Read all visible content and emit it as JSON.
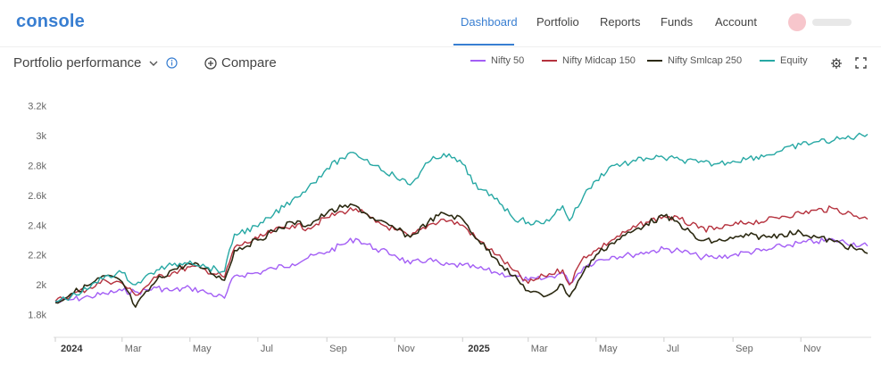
{
  "header": {
    "logo": "console",
    "nav": [
      {
        "label": "Dashboard",
        "active": true
      },
      {
        "label": "Portfolio",
        "active": false
      },
      {
        "label": "Reports",
        "active": false
      },
      {
        "label": "Funds",
        "active": false
      },
      {
        "label": "Account",
        "active": false
      }
    ],
    "accent_color": "#387ed1"
  },
  "toolbar": {
    "title": "Portfolio performance",
    "compare_label": "Compare",
    "icons": [
      "chevron-down-icon",
      "info-icon",
      "add-circle-icon",
      "gear-icon",
      "expand-icon"
    ]
  },
  "chart_data": {
    "type": "line",
    "legend_position": "top-right",
    "grid": false,
    "ylim": [
      1700,
      3300
    ],
    "yticks": [
      "1.8k",
      "2k",
      "2.2k",
      "2.4k",
      "2.6k",
      "2.8k",
      "3k",
      "3.2k"
    ],
    "ytick_values": [
      1800,
      2000,
      2200,
      2400,
      2600,
      2800,
      3000,
      3200
    ],
    "xlim": [
      "2024-01-01",
      "2025-12-31"
    ],
    "xticks": [
      {
        "label": "2024",
        "date": "2024-01-01",
        "bold": true
      },
      {
        "label": "Mar",
        "date": "2024-03-01"
      },
      {
        "label": "May",
        "date": "2024-05-01"
      },
      {
        "label": "Jul",
        "date": "2024-07-01"
      },
      {
        "label": "Sep",
        "date": "2024-09-01"
      },
      {
        "label": "Nov",
        "date": "2024-11-01"
      },
      {
        "label": "2025",
        "date": "2025-01-01",
        "bold": true
      },
      {
        "label": "Mar",
        "date": "2025-03-01"
      },
      {
        "label": "May",
        "date": "2025-05-01"
      },
      {
        "label": "Jul",
        "date": "2025-07-01"
      },
      {
        "label": "Sep",
        "date": "2025-09-01"
      },
      {
        "label": "Nov",
        "date": "2025-11-01"
      }
    ],
    "series": [
      {
        "name": "Nifty 50",
        "color": "#a35ef5",
        "points": [
          [
            "2024-01-01",
            1880
          ],
          [
            "2024-01-15",
            1900
          ],
          [
            "2024-02-01",
            1920
          ],
          [
            "2024-02-15",
            1940
          ],
          [
            "2024-03-01",
            1960
          ],
          [
            "2024-03-15",
            1950
          ],
          [
            "2024-04-01",
            1980
          ],
          [
            "2024-04-15",
            1960
          ],
          [
            "2024-05-01",
            1980
          ],
          [
            "2024-05-15",
            1950
          ],
          [
            "2024-06-01",
            1910
          ],
          [
            "2024-06-10",
            2060
          ],
          [
            "2024-07-01",
            2080
          ],
          [
            "2024-07-15",
            2110
          ],
          [
            "2024-08-01",
            2140
          ],
          [
            "2024-08-15",
            2180
          ],
          [
            "2024-09-01",
            2220
          ],
          [
            "2024-09-15",
            2270
          ],
          [
            "2024-09-27",
            2310
          ],
          [
            "2024-10-15",
            2240
          ],
          [
            "2024-11-01",
            2200
          ],
          [
            "2024-11-15",
            2140
          ],
          [
            "2024-12-01",
            2170
          ],
          [
            "2024-12-15",
            2130
          ],
          [
            "2025-01-01",
            2130
          ],
          [
            "2025-01-15",
            2110
          ],
          [
            "2025-02-01",
            2080
          ],
          [
            "2025-02-15",
            2060
          ],
          [
            "2025-03-01",
            2030
          ],
          [
            "2025-03-15",
            2040
          ],
          [
            "2025-04-01",
            2080
          ],
          [
            "2025-04-07",
            2010
          ],
          [
            "2025-04-20",
            2120
          ],
          [
            "2025-05-01",
            2160
          ],
          [
            "2025-05-15",
            2190
          ],
          [
            "2025-06-01",
            2200
          ],
          [
            "2025-06-15",
            2220
          ],
          [
            "2025-07-01",
            2240
          ],
          [
            "2025-07-15",
            2230
          ],
          [
            "2025-08-01",
            2190
          ],
          [
            "2025-08-15",
            2180
          ],
          [
            "2025-09-01",
            2200
          ],
          [
            "2025-09-15",
            2220
          ],
          [
            "2025-10-01",
            2230
          ],
          [
            "2025-10-15",
            2260
          ],
          [
            "2025-11-01",
            2280
          ],
          [
            "2025-11-15",
            2290
          ],
          [
            "2025-12-01",
            2300
          ],
          [
            "2025-12-31",
            2260
          ]
        ]
      },
      {
        "name": "Nifty Midcap 150",
        "color": "#b5323e",
        "points": [
          [
            "2024-01-01",
            1890
          ],
          [
            "2024-01-15",
            1930
          ],
          [
            "2024-02-01",
            1980
          ],
          [
            "2024-02-15",
            2030
          ],
          [
            "2024-03-01",
            2010
          ],
          [
            "2024-03-13",
            1930
          ],
          [
            "2024-04-01",
            2050
          ],
          [
            "2024-04-15",
            2080
          ],
          [
            "2024-05-01",
            2120
          ],
          [
            "2024-05-15",
            2100
          ],
          [
            "2024-06-01",
            2050
          ],
          [
            "2024-06-10",
            2250
          ],
          [
            "2024-07-01",
            2310
          ],
          [
            "2024-07-15",
            2360
          ],
          [
            "2024-08-01",
            2400
          ],
          [
            "2024-08-15",
            2380
          ],
          [
            "2024-09-01",
            2450
          ],
          [
            "2024-09-15",
            2490
          ],
          [
            "2024-09-27",
            2510
          ],
          [
            "2024-10-15",
            2420
          ],
          [
            "2024-11-01",
            2370
          ],
          [
            "2024-11-15",
            2320
          ],
          [
            "2024-12-01",
            2400
          ],
          [
            "2024-12-15",
            2440
          ],
          [
            "2025-01-01",
            2400
          ],
          [
            "2025-01-15",
            2300
          ],
          [
            "2025-02-01",
            2200
          ],
          [
            "2025-02-15",
            2100
          ],
          [
            "2025-03-01",
            2010
          ],
          [
            "2025-03-15",
            2060
          ],
          [
            "2025-04-01",
            2100
          ],
          [
            "2025-04-07",
            2000
          ],
          [
            "2025-04-20",
            2190
          ],
          [
            "2025-05-01",
            2230
          ],
          [
            "2025-05-15",
            2300
          ],
          [
            "2025-06-01",
            2370
          ],
          [
            "2025-06-15",
            2420
          ],
          [
            "2025-07-01",
            2460
          ],
          [
            "2025-07-15",
            2440
          ],
          [
            "2025-08-01",
            2380
          ],
          [
            "2025-08-15",
            2370
          ],
          [
            "2025-09-01",
            2400
          ],
          [
            "2025-09-15",
            2420
          ],
          [
            "2025-10-01",
            2430
          ],
          [
            "2025-10-15",
            2460
          ],
          [
            "2025-11-01",
            2480
          ],
          [
            "2025-11-15",
            2500
          ],
          [
            "2025-12-01",
            2510
          ],
          [
            "2025-12-31",
            2440
          ]
        ]
      },
      {
        "name": "Nifty Smlcap 250",
        "color": "#2c2a12",
        "points": [
          [
            "2024-01-01",
            1880
          ],
          [
            "2024-01-15",
            1940
          ],
          [
            "2024-02-01",
            2000
          ],
          [
            "2024-02-15",
            2060
          ],
          [
            "2024-03-01",
            2020
          ],
          [
            "2024-03-13",
            1850
          ],
          [
            "2024-04-01",
            2030
          ],
          [
            "2024-04-15",
            2100
          ],
          [
            "2024-05-01",
            2140
          ],
          [
            "2024-05-15",
            2110
          ],
          [
            "2024-06-01",
            2030
          ],
          [
            "2024-06-10",
            2230
          ],
          [
            "2024-07-01",
            2300
          ],
          [
            "2024-07-15",
            2360
          ],
          [
            "2024-08-01",
            2420
          ],
          [
            "2024-08-15",
            2400
          ],
          [
            "2024-09-01",
            2480
          ],
          [
            "2024-09-15",
            2520
          ],
          [
            "2024-09-27",
            2530
          ],
          [
            "2024-10-15",
            2430
          ],
          [
            "2024-11-01",
            2380
          ],
          [
            "2024-11-15",
            2320
          ],
          [
            "2024-12-01",
            2420
          ],
          [
            "2024-12-15",
            2480
          ],
          [
            "2025-01-01",
            2440
          ],
          [
            "2025-01-15",
            2300
          ],
          [
            "2025-02-01",
            2170
          ],
          [
            "2025-02-15",
            2060
          ],
          [
            "2025-03-01",
            1960
          ],
          [
            "2025-03-15",
            1920
          ],
          [
            "2025-04-01",
            2000
          ],
          [
            "2025-04-07",
            1920
          ],
          [
            "2025-04-20",
            2090
          ],
          [
            "2025-05-01",
            2200
          ],
          [
            "2025-05-15",
            2280
          ],
          [
            "2025-06-01",
            2350
          ],
          [
            "2025-06-15",
            2410
          ],
          [
            "2025-07-01",
            2460
          ],
          [
            "2025-07-15",
            2410
          ],
          [
            "2025-08-01",
            2300
          ],
          [
            "2025-08-15",
            2290
          ],
          [
            "2025-09-01",
            2310
          ],
          [
            "2025-09-15",
            2330
          ],
          [
            "2025-10-01",
            2320
          ],
          [
            "2025-10-15",
            2340
          ],
          [
            "2025-11-01",
            2350
          ],
          [
            "2025-11-15",
            2320
          ],
          [
            "2025-12-01",
            2290
          ],
          [
            "2025-12-31",
            2210
          ]
        ]
      },
      {
        "name": "Equity",
        "color": "#27a8a4",
        "points": [
          [
            "2024-01-01",
            1890
          ],
          [
            "2024-01-15",
            1920
          ],
          [
            "2024-02-01",
            1980
          ],
          [
            "2024-02-15",
            2060
          ],
          [
            "2024-03-01",
            2080
          ],
          [
            "2024-03-13",
            2000
          ],
          [
            "2024-04-01",
            2100
          ],
          [
            "2024-04-15",
            2130
          ],
          [
            "2024-05-01",
            2160
          ],
          [
            "2024-05-15",
            2120
          ],
          [
            "2024-06-01",
            2090
          ],
          [
            "2024-06-10",
            2340
          ],
          [
            "2024-07-01",
            2390
          ],
          [
            "2024-07-15",
            2470
          ],
          [
            "2024-08-01",
            2570
          ],
          [
            "2024-08-15",
            2650
          ],
          [
            "2024-09-01",
            2780
          ],
          [
            "2024-09-15",
            2850
          ],
          [
            "2024-09-27",
            2880
          ],
          [
            "2024-10-15",
            2800
          ],
          [
            "2024-11-01",
            2730
          ],
          [
            "2024-11-15",
            2670
          ],
          [
            "2024-12-01",
            2820
          ],
          [
            "2024-12-15",
            2880
          ],
          [
            "2025-01-01",
            2810
          ],
          [
            "2025-01-15",
            2640
          ],
          [
            "2025-02-01",
            2580
          ],
          [
            "2025-02-15",
            2450
          ],
          [
            "2025-03-01",
            2420
          ],
          [
            "2025-03-15",
            2410
          ],
          [
            "2025-04-01",
            2530
          ],
          [
            "2025-04-07",
            2430
          ],
          [
            "2025-04-20",
            2600
          ],
          [
            "2025-05-01",
            2700
          ],
          [
            "2025-05-15",
            2800
          ],
          [
            "2025-06-01",
            2820
          ],
          [
            "2025-06-15",
            2850
          ],
          [
            "2025-07-01",
            2850
          ],
          [
            "2025-07-15",
            2840
          ],
          [
            "2025-08-01",
            2820
          ],
          [
            "2025-08-15",
            2810
          ],
          [
            "2025-09-01",
            2830
          ],
          [
            "2025-09-15",
            2850
          ],
          [
            "2025-10-01",
            2870
          ],
          [
            "2025-10-15",
            2900
          ],
          [
            "2025-11-01",
            2940
          ],
          [
            "2025-11-15",
            2960
          ],
          [
            "2025-12-01",
            2970
          ],
          [
            "2025-12-31",
            3010
          ]
        ]
      }
    ]
  }
}
